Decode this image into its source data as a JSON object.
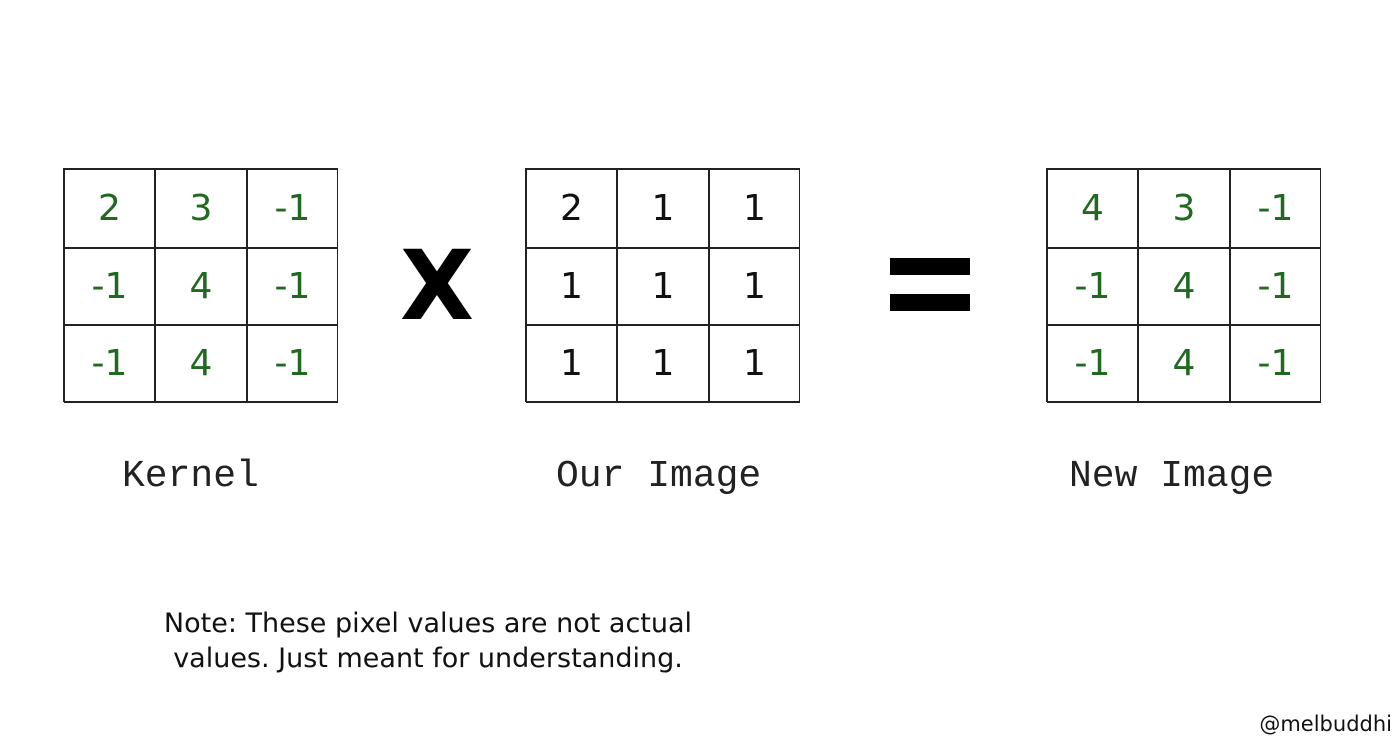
{
  "kernel": {
    "label": "Kernel",
    "cells": [
      "2",
      "3",
      "-1",
      "-1",
      "4",
      "-1",
      "-1",
      "4",
      "-1"
    ],
    "color": "#1f6a1f"
  },
  "image": {
    "label": "Our Image",
    "cells": [
      "2",
      "1",
      "1",
      "1",
      "1",
      "1",
      "1",
      "1",
      "1"
    ],
    "color": "#111111"
  },
  "result": {
    "label": "New Image",
    "cells": [
      "4",
      "3",
      "-1",
      "-1",
      "4",
      "-1",
      "-1",
      "4",
      "-1"
    ],
    "color": "#1f6a1f"
  },
  "operators": {
    "times": "X"
  },
  "note": "Note: These pixel values are not actual values. Just meant for understanding.",
  "handle": "@melbuddhi"
}
